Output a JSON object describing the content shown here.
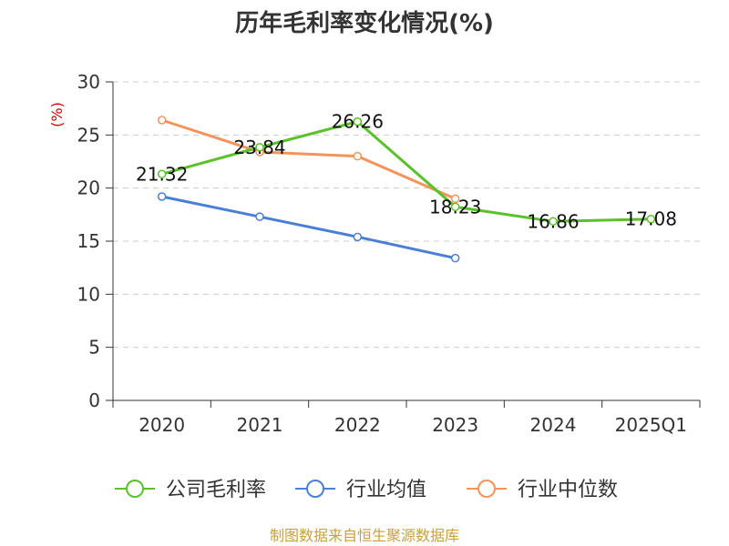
{
  "chart_data": {
    "type": "line",
    "title": "历年毛利率变化情况(%)",
    "ylabel": "(%)",
    "xlabel": "",
    "ylim": [
      0,
      30
    ],
    "yticks": [
      "0",
      "5",
      "10",
      "15",
      "20",
      "25",
      "30"
    ],
    "categories": [
      "2020",
      "2021",
      "2022",
      "2023",
      "2024",
      "2025Q1"
    ],
    "grid": true,
    "legend_position": "bottom",
    "series": [
      {
        "name": "公司毛利率",
        "color": "#5ac12a",
        "values": [
          21.32,
          23.84,
          26.26,
          18.23,
          16.86,
          17.08
        ],
        "labels": [
          "21.32",
          "23.84",
          "26.26",
          "18.23",
          "16.86",
          "17.08"
        ]
      },
      {
        "name": "行业均值",
        "color": "#4a7fd6",
        "values": [
          19.2,
          17.3,
          15.4,
          13.4,
          null,
          null
        ]
      },
      {
        "name": "行业中位数",
        "color": "#f5935a",
        "values": [
          26.4,
          23.4,
          23.0,
          19.0,
          null,
          null
        ]
      }
    ],
    "source": "制图数据来自恒生聚源数据库"
  }
}
